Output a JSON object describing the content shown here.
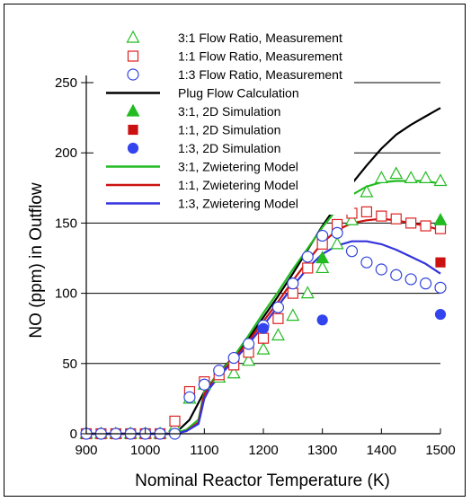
{
  "chart_data": {
    "type": "scatter",
    "xlabel": "Nominal Reactor Temperature (K)",
    "ylabel": "NO (ppm) in Outflow",
    "xlim": [
      900,
      1500
    ],
    "ylim": [
      0,
      250
    ],
    "xticks": [
      900,
      1000,
      1100,
      1200,
      1300,
      1400,
      1500
    ],
    "yticks": [
      0,
      50,
      100,
      150,
      200,
      250
    ],
    "gridlines_y": [
      50,
      100,
      150,
      200,
      250
    ],
    "legend_position": "top",
    "series": [
      {
        "name": "3:1 Flow Ratio, Measurement",
        "kind": "marker",
        "marker": "triangle-open",
        "color": "#22bb22",
        "x": [
          900,
          925,
          950,
          975,
          1000,
          1025,
          1050,
          1075,
          1100,
          1125,
          1150,
          1175,
          1200,
          1225,
          1250,
          1275,
          1300,
          1325,
          1350,
          1375,
          1400,
          1425,
          1450,
          1475,
          1500
        ],
        "y": [
          0,
          0,
          0,
          0,
          0,
          0,
          5,
          25,
          35,
          40,
          43,
          52,
          60,
          70,
          84,
          100,
          118,
          135,
          152,
          172,
          182,
          185,
          182,
          182,
          180
        ]
      },
      {
        "name": "1:1 Flow Ratio, Measurement",
        "kind": "marker",
        "marker": "square-open",
        "color": "#dd2222",
        "x": [
          900,
          925,
          950,
          975,
          1000,
          1025,
          1050,
          1075,
          1100,
          1125,
          1150,
          1175,
          1200,
          1225,
          1250,
          1275,
          1300,
          1325,
          1350,
          1375,
          1400,
          1425,
          1450,
          1475,
          1500
        ],
        "y": [
          0,
          0,
          0,
          0,
          0,
          0,
          9,
          30,
          37,
          42,
          49,
          58,
          68,
          82,
          100,
          118,
          135,
          149,
          157,
          158,
          155,
          153,
          150,
          148,
          146
        ]
      },
      {
        "name": "1:3 Flow Ratio, Measurement",
        "kind": "marker",
        "marker": "circle-open",
        "color": "#3344dd",
        "x": [
          900,
          925,
          950,
          975,
          1000,
          1025,
          1050,
          1075,
          1100,
          1125,
          1150,
          1175,
          1200,
          1225,
          1250,
          1275,
          1300,
          1325,
          1350,
          1375,
          1400,
          1425,
          1450,
          1475,
          1500
        ],
        "y": [
          0,
          0,
          0,
          0,
          0,
          0,
          0,
          26,
          35,
          45,
          54,
          64,
          77,
          90,
          107,
          126,
          141,
          143,
          130,
          122,
          117,
          113,
          110,
          107,
          104
        ]
      },
      {
        "name": "Plug Flow Calculation",
        "kind": "line",
        "color": "#000000",
        "x": [
          900,
          1050,
          1075,
          1100,
          1125,
          1150,
          1175,
          1200,
          1225,
          1250,
          1275,
          1300,
          1325,
          1350,
          1375,
          1400,
          1425,
          1450,
          1475,
          1500
        ],
        "y": [
          0,
          0,
          10,
          30,
          44,
          55,
          68,
          83,
          98,
          114,
          131,
          148,
          163,
          178,
          191,
          203,
          213,
          220,
          226,
          232
        ]
      },
      {
        "name": "3:1, 2D Simulation",
        "kind": "marker",
        "marker": "triangle-filled",
        "color": "#22bb22",
        "x": [
          1300,
          1500
        ],
        "y": [
          125,
          152
        ]
      },
      {
        "name": "1:1, 2D Simulation",
        "kind": "marker",
        "marker": "square-filled",
        "color": "#cc1111",
        "x": [
          1500
        ],
        "y": [
          122
        ]
      },
      {
        "name": "1:3, 2D Simulation",
        "kind": "marker",
        "marker": "circle-filled",
        "color": "#3344ee",
        "x": [
          1200,
          1300,
          1500
        ],
        "y": [
          75,
          81,
          85
        ]
      },
      {
        "name": "3:1, Zwietering Model",
        "kind": "line",
        "color": "#22bb22",
        "x": [
          900,
          1050,
          1070,
          1090,
          1100,
          1110,
          1125,
          1150,
          1175,
          1200,
          1225,
          1250,
          1275,
          1300,
          1325,
          1350,
          1375,
          1400,
          1425,
          1450,
          1475,
          1500
        ],
        "y": [
          0,
          0,
          3,
          10,
          30,
          36,
          43,
          55,
          70,
          86,
          101,
          117,
          132,
          147,
          160,
          170,
          176,
          179,
          180,
          180,
          180,
          178
        ]
      },
      {
        "name": "1:1, Zwietering Model",
        "kind": "line",
        "color": "#cc1111",
        "x": [
          900,
          1050,
          1070,
          1090,
          1100,
          1110,
          1125,
          1150,
          1175,
          1200,
          1225,
          1250,
          1275,
          1300,
          1325,
          1350,
          1375,
          1400,
          1425,
          1450,
          1475,
          1500
        ],
        "y": [
          0,
          0,
          2,
          8,
          28,
          35,
          42,
          53,
          66,
          80,
          94,
          109,
          123,
          136,
          145,
          150,
          152,
          153,
          152,
          150,
          148,
          145
        ]
      },
      {
        "name": "1:3, Zwietering Model",
        "kind": "line",
        "color": "#3333dd",
        "x": [
          900,
          1050,
          1070,
          1090,
          1100,
          1110,
          1125,
          1150,
          1175,
          1200,
          1225,
          1250,
          1275,
          1300,
          1325,
          1350,
          1375,
          1400,
          1425,
          1450,
          1475,
          1500
        ],
        "y": [
          0,
          0,
          2,
          7,
          25,
          33,
          41,
          52,
          64,
          77,
          91,
          105,
          118,
          128,
          134,
          137,
          137,
          135,
          131,
          126,
          121,
          114
        ]
      }
    ]
  }
}
